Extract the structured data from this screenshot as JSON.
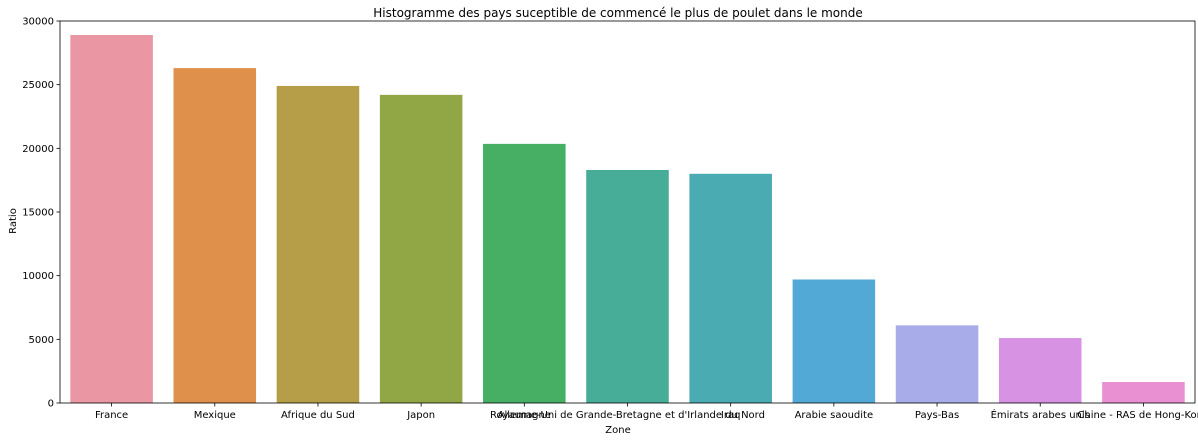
{
  "chart_data": {
    "type": "bar",
    "title": "Histogramme des pays suceptible de commencé le plus de poulet dans le monde",
    "xlabel": "Zone",
    "ylabel": "Ratio",
    "ylim": [
      0,
      30000
    ],
    "yticks": [
      0,
      5000,
      10000,
      15000,
      20000,
      25000,
      30000
    ],
    "grid": false,
    "legend": "none",
    "categories": [
      "France",
      "Mexique",
      "Afrique du Sud",
      "Japon",
      "Allemagne",
      "Royaume-Uni de Grande-Bretagne et d'Irlande du Nord",
      "Iraq",
      "Arabie saoudite",
      "Pays-Bas",
      "Émirats arabes unis",
      "Chine - RAS de Hong-Kong"
    ],
    "values": [
      28900,
      26300,
      24900,
      24200,
      20350,
      18300,
      18000,
      9700,
      6100,
      5100,
      1650
    ],
    "colors": [
      "#ea96a3",
      "#df914b",
      "#b59e47",
      "#91a745",
      "#46af63",
      "#48ad98",
      "#4aabb2",
      "#53a9d6",
      "#a8ace9",
      "#d792e4",
      "#e890d1"
    ]
  }
}
